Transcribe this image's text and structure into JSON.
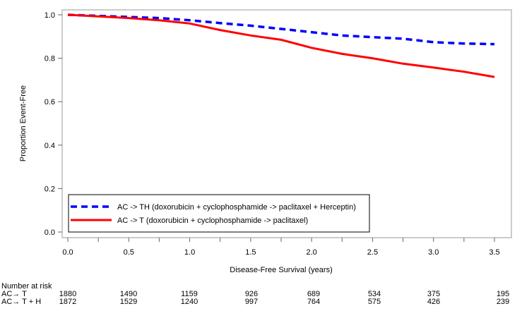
{
  "chart_data": {
    "type": "line",
    "title": "",
    "xlabel": "Disease-Free Survival (years)",
    "ylabel": "Proportion Event-Free",
    "xlim": [
      0,
      3.5
    ],
    "ylim": [
      0,
      1.0
    ],
    "xticks": [
      "0.0",
      "0.5",
      "1.0",
      "1.5",
      "2.0",
      "2.5",
      "3.0",
      "3.5"
    ],
    "yticks": [
      "0.0",
      "0.2",
      "0.4",
      "0.6",
      "0.8",
      "1.0"
    ],
    "grid": false,
    "legend_position": "bottom-left",
    "series": [
      {
        "name": "AC -> TH (doxorubicin + cyclophosphamide -> paclitaxel + Herceptin)",
        "color": "#0000ff",
        "style": "dashed",
        "x": [
          0,
          0.25,
          0.5,
          0.75,
          1.0,
          1.25,
          1.5,
          1.75,
          2.0,
          2.25,
          2.5,
          2.75,
          3.0,
          3.25,
          3.5
        ],
        "y": [
          1.0,
          0.995,
          0.99,
          0.985,
          0.975,
          0.962,
          0.95,
          0.935,
          0.92,
          0.905,
          0.897,
          0.89,
          0.874,
          0.868,
          0.865
        ]
      },
      {
        "name": "AC -> T (doxorubicin + cyclophosphamide -> paclitaxel)",
        "color": "#ff0000",
        "style": "solid",
        "x": [
          0,
          0.25,
          0.5,
          0.75,
          1.0,
          1.25,
          1.5,
          1.75,
          2.0,
          2.25,
          2.5,
          2.75,
          3.0,
          3.25,
          3.5
        ],
        "y": [
          1.0,
          0.993,
          0.985,
          0.975,
          0.96,
          0.93,
          0.905,
          0.885,
          0.848,
          0.82,
          0.8,
          0.775,
          0.757,
          0.738,
          0.714
        ]
      }
    ],
    "risk_table": {
      "title": "Number at risk",
      "rows": [
        {
          "label": "AC→ T",
          "values": [
            "1880",
            "1490",
            "1159",
            "926",
            "689",
            "534",
            "375",
            "195"
          ]
        },
        {
          "label": "AC→ T + H",
          "values": [
            "1872",
            "1529",
            "1240",
            "997",
            "764",
            "575",
            "426",
            "239"
          ]
        }
      ]
    }
  }
}
